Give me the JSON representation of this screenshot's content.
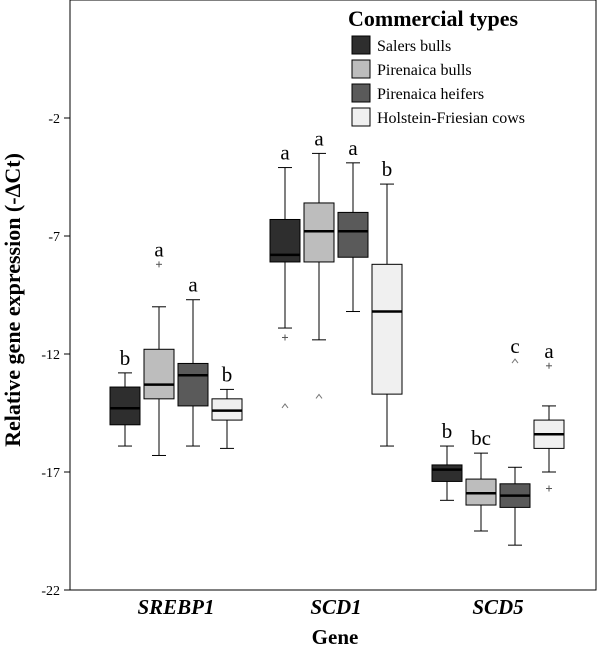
{
  "chart_data": {
    "type": "boxplot",
    "xlabel": "Gene",
    "ylabel": "Relative gene expression (-ΔCt)",
    "ylim": [
      -22,
      3
    ],
    "yticks": [
      -22,
      -17,
      -12,
      -7,
      -2
    ],
    "grid": false,
    "legend": {
      "title": "Commercial types",
      "position": "top-right",
      "entries": [
        {
          "name": "Salers bulls",
          "color": "#2e2e2e"
        },
        {
          "name": "Pirenaica bulls",
          "color": "#bdbdbd"
        },
        {
          "name": "Pirenaica heifers",
          "color": "#5a5a5a"
        },
        {
          "name": "Holstein-Friesian cows",
          "color": "#f0f0f0"
        }
      ]
    },
    "categories": [
      "SREBP1",
      "SCD1",
      "SCD5"
    ],
    "groups": [
      {
        "gene": "SREBP1",
        "boxes": [
          {
            "series": "Salers bulls",
            "whisker_low": -15.9,
            "q1": -15.0,
            "median": -14.3,
            "q3": -13.4,
            "whisker_high": -12.8,
            "outliers": [],
            "letter": "b"
          },
          {
            "series": "Pirenaica bulls",
            "whisker_low": -16.3,
            "q1": -13.9,
            "median": -13.3,
            "q3": -11.8,
            "whisker_high": -10.0,
            "outliers": [
              {
                "value": -8.2,
                "marker": "+"
              }
            ],
            "letter": "a"
          },
          {
            "series": "Pirenaica heifers",
            "whisker_low": -15.9,
            "q1": -14.2,
            "median": -12.9,
            "q3": -12.4,
            "whisker_high": -9.7,
            "outliers": [],
            "letter": "a"
          },
          {
            "series": "Holstein-Friesian cows",
            "whisker_low": -16.0,
            "q1": -14.8,
            "median": -14.4,
            "q3": -13.9,
            "whisker_high": -13.5,
            "outliers": [],
            "letter": "b"
          }
        ]
      },
      {
        "gene": "SCD1",
        "boxes": [
          {
            "series": "Salers bulls",
            "whisker_low": -10.9,
            "q1": -8.1,
            "median": -7.8,
            "q3": -6.3,
            "whisker_high": -4.1,
            "outliers": [
              {
                "value": -11.3,
                "marker": "+"
              },
              {
                "value": -14.2,
                "marker": "^"
              }
            ],
            "letter": "a"
          },
          {
            "series": "Pirenaica bulls",
            "whisker_low": -11.4,
            "q1": -8.1,
            "median": -6.8,
            "q3": -5.6,
            "whisker_high": -3.5,
            "outliers": [
              {
                "value": -13.8,
                "marker": "^"
              }
            ],
            "letter": "a"
          },
          {
            "series": "Pirenaica heifers",
            "whisker_low": -10.2,
            "q1": -7.9,
            "median": -6.8,
            "q3": -6.0,
            "whisker_high": -3.9,
            "outliers": [],
            "letter": "a"
          },
          {
            "series": "Holstein-Friesian cows",
            "whisker_low": -15.9,
            "q1": -13.7,
            "median": -10.2,
            "q3": -8.2,
            "whisker_high": -4.8,
            "outliers": [],
            "letter": "b"
          }
        ]
      },
      {
        "gene": "SCD5",
        "boxes": [
          {
            "series": "Salers bulls",
            "whisker_low": -18.2,
            "q1": -17.4,
            "median": -16.9,
            "q3": -16.7,
            "whisker_high": -15.9,
            "outliers": [],
            "letter": "b"
          },
          {
            "series": "Pirenaica bulls",
            "whisker_low": -19.5,
            "q1": -18.4,
            "median": -17.9,
            "q3": -17.3,
            "whisker_high": -16.2,
            "outliers": [],
            "letter": "bc"
          },
          {
            "series": "Pirenaica heifers",
            "whisker_low": -20.1,
            "q1": -18.5,
            "median": -18.0,
            "q3": -17.5,
            "whisker_high": -16.8,
            "outliers": [
              {
                "value": -12.3,
                "marker": "^"
              }
            ],
            "letter": "c"
          },
          {
            "series": "Holstein-Friesian cows",
            "whisker_low": -17.0,
            "q1": -16.0,
            "median": -15.4,
            "q3": -14.8,
            "whisker_high": -14.2,
            "outliers": [
              {
                "value": -12.5,
                "marker": "+"
              },
              {
                "value": -17.7,
                "marker": "+"
              }
            ],
            "letter": "a"
          }
        ]
      }
    ]
  }
}
